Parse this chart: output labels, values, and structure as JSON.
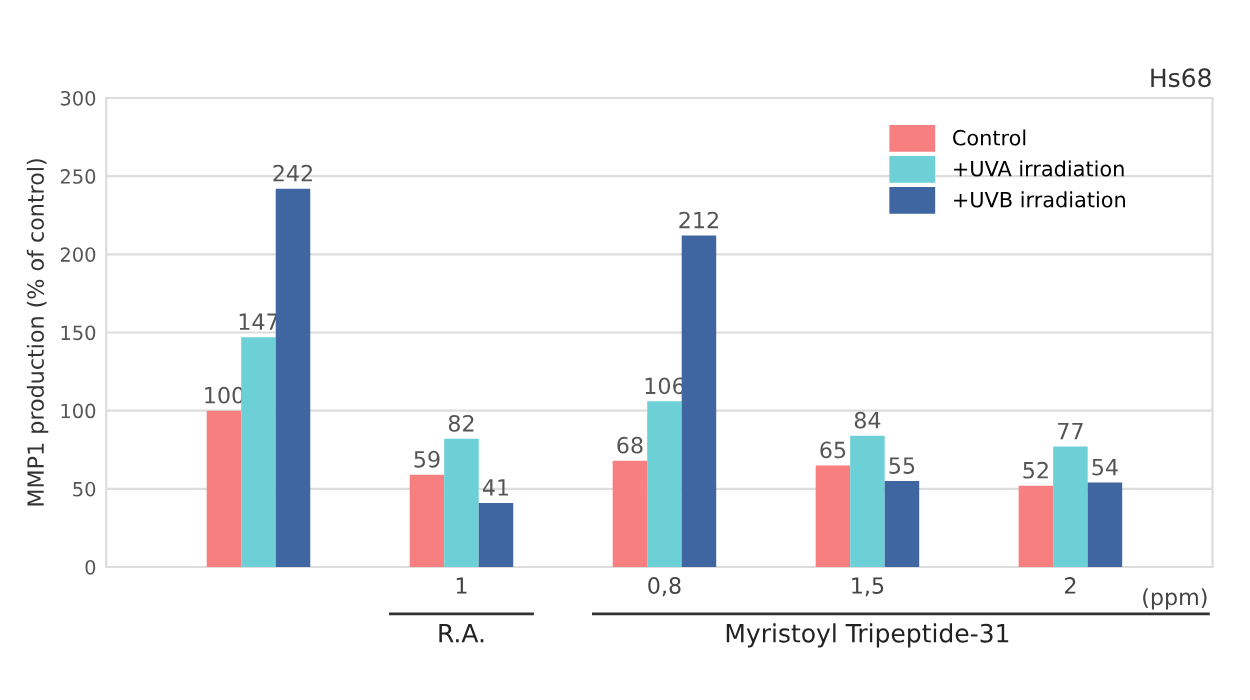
{
  "chart_data": {
    "type": "bar",
    "title": "Hs68",
    "ylabel": "MMP1 production (% of control)",
    "categories": [
      null,
      "1",
      "0,8",
      "1,5",
      "2"
    ],
    "series": [
      {
        "name": "Control",
        "color": "#f77f7f",
        "values": [
          100,
          59,
          68,
          65,
          52
        ]
      },
      {
        "name": "+UVA irradiation",
        "color": "#6dd0d6",
        "values": [
          147,
          82,
          106,
          84,
          77
        ]
      },
      {
        "name": "+UVB irradiation",
        "color": "#3f66a0",
        "values": [
          242,
          41,
          212,
          55,
          54
        ]
      }
    ],
    "ylim": [
      0,
      300
    ],
    "yticks": [
      0,
      50,
      100,
      150,
      200,
      250,
      300
    ],
    "grid": "y",
    "legend": "top right",
    "data_labels": true,
    "annotations": [
      "(ppm)",
      "R.A.",
      "Myristoyl Tripeptide-31"
    ]
  }
}
